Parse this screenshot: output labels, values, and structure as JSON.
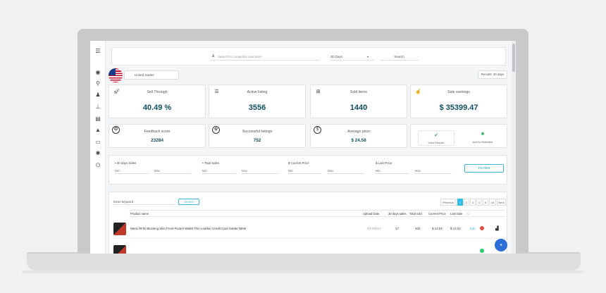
{
  "search": {
    "placeholder": "Search for competitor username",
    "period": "30 Days",
    "button": "Search"
  },
  "country": "United States",
  "results_label": "Results: 30 days",
  "stats_top": [
    {
      "label": "Sell Through",
      "value": "40.49 %",
      "icon": "rocket-icon"
    },
    {
      "label": "Active listing",
      "value": "3556",
      "icon": "list-icon"
    },
    {
      "label": "Sold items",
      "value": "1440",
      "icon": "basket-icon"
    },
    {
      "label": "Sale earnings",
      "value": "$ 35399.47",
      "icon": "hand-money-icon"
    }
  ],
  "stats_bottom": [
    {
      "label": "Feedback score",
      "value": "23284",
      "icon": "medal-icon"
    },
    {
      "label": "Successful listings",
      "value": "752",
      "icon": "award-icon"
    },
    {
      "label": "Average price",
      "value": "$ 24.58",
      "icon": "dollar-icon"
    }
  ],
  "actions": {
    "view_results": "View Results",
    "add_watchlist": "Add to Watchlist"
  },
  "filters": [
    {
      "label": "30 days Sales",
      "min": "Min",
      "max": "Max"
    },
    {
      "label": "Total Sales",
      "min": "Min",
      "max": "Max"
    },
    {
      "label": "Current Price",
      "min": "Min",
      "max": "Max"
    },
    {
      "label": "Last Price",
      "min": "Min",
      "max": "Max"
    }
  ],
  "filter_button": "FILTER",
  "keyword": {
    "placeholder": "Enter keyword",
    "button": "Search"
  },
  "pagination": {
    "previous": "Previous",
    "pages": [
      "1",
      "2",
      "3",
      "4",
      "5",
      "15"
    ],
    "next": "Next",
    "active": "1"
  },
  "table": {
    "columns": [
      "Product name",
      "Upload Date",
      "30 days sales",
      "Total sold",
      "Current Price",
      "Last Sale",
      "C"
    ],
    "rows": [
      {
        "name": "Mens RFID Blocking Slim Front Pocket Wallet Thin Leather Credit Card Holder NEW",
        "date": "3/17/2017",
        "sales30": "17",
        "total": "403",
        "current": "$ 13.04",
        "last": "$ 13.04",
        "status_label": "Edit"
      },
      {
        "name": "",
        "date": "",
        "sales30": "",
        "total": "",
        "current": "",
        "last": "",
        "status_label": ""
      }
    ]
  },
  "colors": {
    "accent": "#40b7e0",
    "value_text": "#0f4e63",
    "chat": "#2b6fd6",
    "red_dot": "#e74c3c",
    "green_dot": "#2ecc71"
  }
}
